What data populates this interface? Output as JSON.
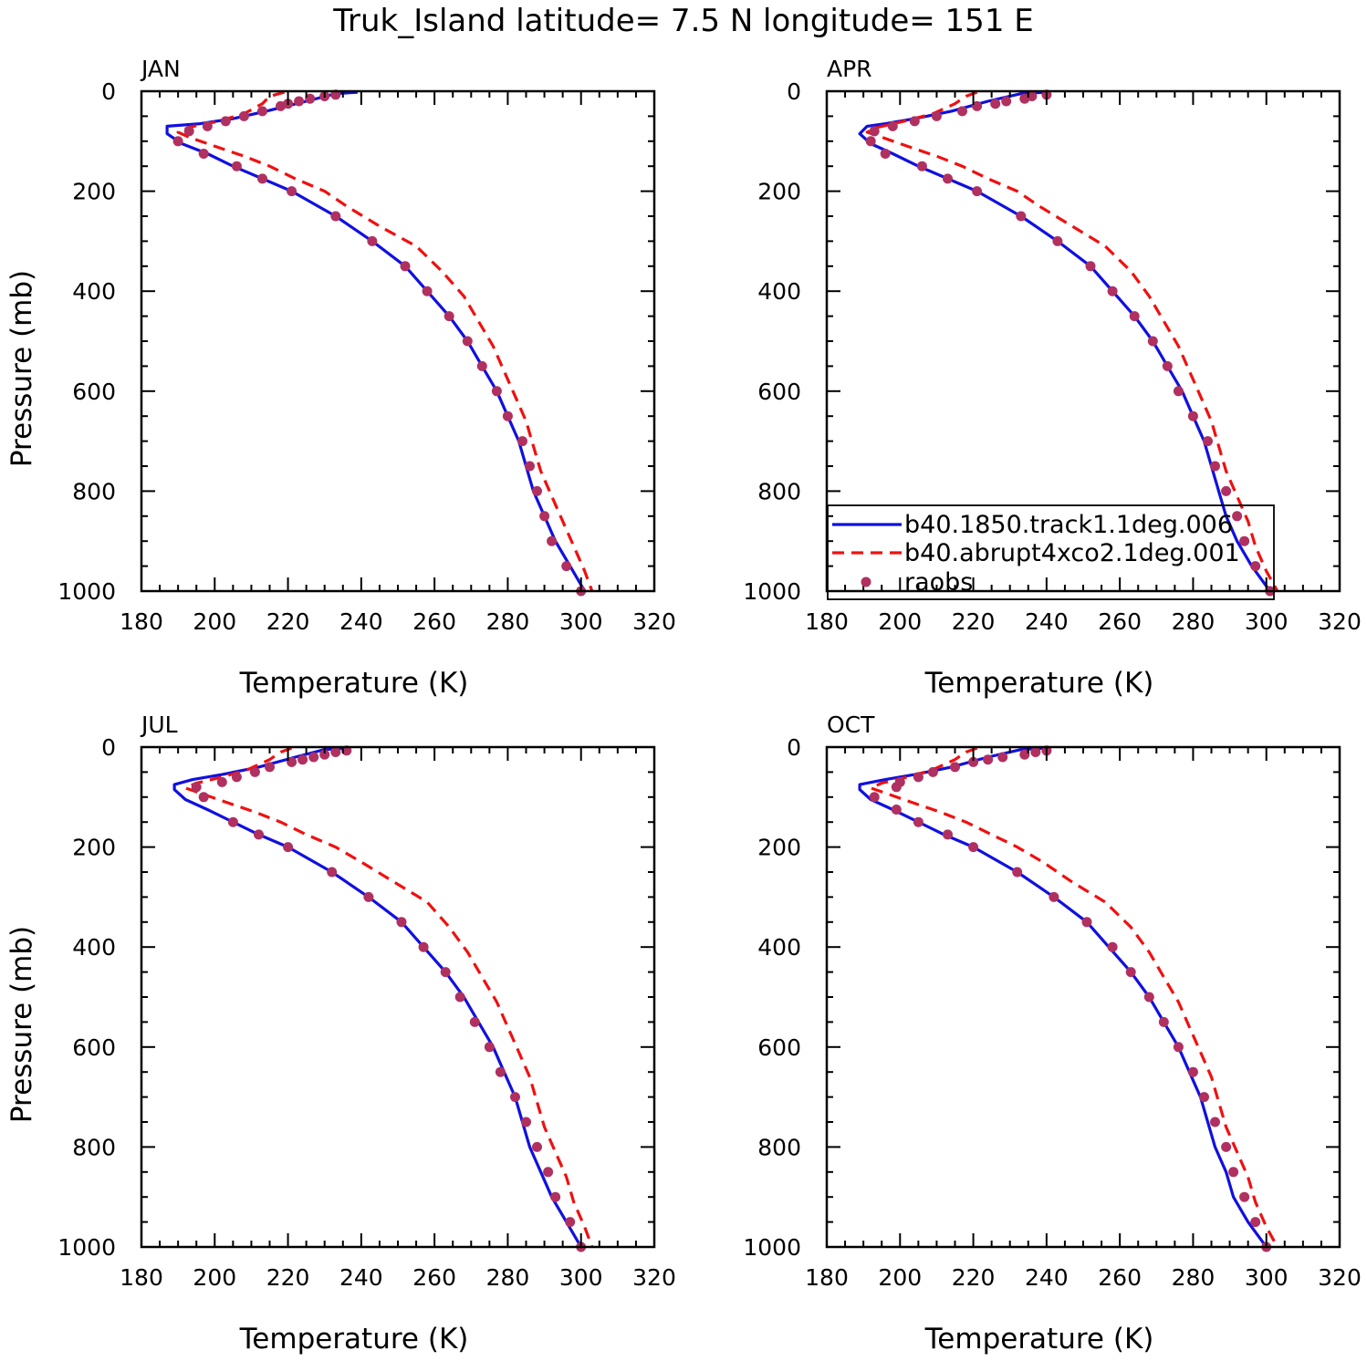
{
  "title": "Truk_Island  latitude= 7.5 N longitude= 151 E",
  "colors": {
    "b40.1850.track1.1deg.006": "#1010e0",
    "b40.abrupt4xco2.1deg.001": "#f01010",
    "raobs": "#b03060"
  },
  "legend": {
    "placement": "bottom-right of APR panel",
    "entries": [
      {
        "label": "b40.1850.track1.1deg.006",
        "style": "solid",
        "color": "#1010e0"
      },
      {
        "label": "b40.abrupt4xco2.1deg.001",
        "style": "dashed",
        "color": "#f01010"
      },
      {
        "label": "raobs",
        "style": "dot",
        "color": "#b03060"
      }
    ]
  },
  "chart_data": [
    {
      "type": "line",
      "title": "JAN",
      "xlabel": "Temperature (K)",
      "ylabel": "Pressure (mb)",
      "xlim": [
        180,
        320
      ],
      "ylim": [
        1000,
        0
      ],
      "xticks": [
        "180",
        "200",
        "220",
        "240",
        "260",
        "280",
        "300",
        "320"
      ],
      "yticks": [
        "0",
        "200",
        "400",
        "600",
        "800",
        "1000"
      ],
      "grid": false,
      "series": [
        {
          "name": "b40.1850.track1.1deg.006",
          "style": "solid",
          "x": [
            239,
            233,
            225,
            214,
            205,
            196,
            187,
            187,
            191,
            198,
            205,
            213,
            221,
            233,
            243,
            252,
            258,
            264,
            269,
            273,
            277,
            280,
            283,
            285,
            287,
            290,
            293,
            297,
            301
          ],
          "y": [
            2,
            5,
            20,
            40,
            55,
            65,
            70,
            85,
            105,
            125,
            150,
            175,
            200,
            250,
            300,
            350,
            400,
            450,
            500,
            550,
            600,
            650,
            700,
            750,
            800,
            850,
            900,
            950,
            1000
          ]
        },
        {
          "name": "b40.abrupt4xco2.1deg.001",
          "style": "dashed",
          "x": [
            219,
            215,
            213,
            208,
            201,
            193,
            190,
            193,
            200,
            208,
            215,
            222,
            230,
            236,
            245,
            255,
            262,
            268,
            272,
            276,
            279,
            282,
            285,
            287,
            289,
            292,
            295,
            298,
            301,
            303
          ],
          "y": [
            2,
            10,
            25,
            45,
            60,
            72,
            82,
            92,
            110,
            130,
            150,
            175,
            200,
            230,
            270,
            310,
            360,
            410,
            460,
            510,
            560,
            610,
            660,
            710,
            760,
            810,
            860,
            910,
            960,
            1000
          ]
        },
        {
          "name": "raobs",
          "style": "dot",
          "x": [
            233,
            230,
            226,
            223,
            220,
            218,
            213,
            208,
            203,
            198,
            193,
            190,
            197,
            206,
            213,
            221,
            233,
            243,
            252,
            258,
            264,
            269,
            273,
            277,
            280,
            284,
            286,
            288,
            290,
            292,
            296,
            300
          ],
          "y": [
            7,
            10,
            15,
            20,
            25,
            30,
            40,
            50,
            60,
            70,
            80,
            100,
            125,
            150,
            175,
            200,
            250,
            300,
            350,
            400,
            450,
            500,
            550,
            600,
            650,
            700,
            750,
            800,
            850,
            900,
            950,
            1000
          ]
        }
      ]
    },
    {
      "type": "line",
      "title": "APR",
      "xlabel": "Temperature (K)",
      "ylabel": "",
      "xlim": [
        180,
        320
      ],
      "ylim": [
        1000,
        0
      ],
      "xticks": [
        "180",
        "200",
        "220",
        "240",
        "260",
        "280",
        "300",
        "320"
      ],
      "yticks": [
        "0",
        "200",
        "400",
        "600",
        "800",
        "1000"
      ],
      "grid": false,
      "series": [
        {
          "name": "b40.1850.track1.1deg.006",
          "style": "solid",
          "x": [
            240,
            233,
            224,
            214,
            204,
            196,
            191,
            189,
            192,
            198,
            205,
            213,
            221,
            233,
            243,
            252,
            258,
            264,
            269,
            273,
            277,
            280,
            283,
            285,
            287,
            289,
            292,
            296,
            301
          ],
          "y": [
            2,
            5,
            20,
            40,
            55,
            65,
            70,
            85,
            105,
            125,
            150,
            175,
            200,
            250,
            300,
            350,
            400,
            450,
            500,
            550,
            600,
            650,
            700,
            750,
            800,
            850,
            900,
            950,
            1000
          ]
        },
        {
          "name": "b40.abrupt4xco2.1deg.001",
          "style": "dashed",
          "x": [
            221,
            218,
            215,
            209,
            201,
            194,
            191,
            195,
            202,
            210,
            217,
            224,
            232,
            238,
            247,
            256,
            263,
            268,
            272,
            276,
            279,
            282,
            285,
            287,
            289,
            292,
            295,
            297,
            300,
            303
          ],
          "y": [
            2,
            10,
            25,
            45,
            60,
            72,
            82,
            92,
            110,
            130,
            150,
            175,
            200,
            230,
            270,
            310,
            360,
            410,
            460,
            510,
            560,
            610,
            660,
            710,
            760,
            810,
            860,
            910,
            960,
            1000
          ]
        },
        {
          "name": "raobs",
          "style": "dot",
          "x": [
            240,
            236,
            234,
            229,
            226,
            221,
            217,
            210,
            204,
            198,
            193,
            192,
            196,
            206,
            213,
            221,
            233,
            243,
            252,
            258,
            264,
            269,
            273,
            276,
            280,
            284,
            286,
            289,
            292,
            294,
            297,
            301
          ],
          "y": [
            7,
            10,
            15,
            20,
            25,
            30,
            40,
            50,
            60,
            70,
            80,
            100,
            125,
            150,
            175,
            200,
            250,
            300,
            350,
            400,
            450,
            500,
            550,
            600,
            650,
            700,
            750,
            800,
            850,
            900,
            950,
            1000
          ]
        }
      ]
    },
    {
      "type": "line",
      "title": "JUL",
      "xlabel": "Temperature (K)",
      "ylabel": "Pressure (mb)",
      "xlim": [
        180,
        320
      ],
      "ylim": [
        1000,
        0
      ],
      "xticks": [
        "180",
        "200",
        "220",
        "240",
        "260",
        "280",
        "300",
        "320"
      ],
      "yticks": [
        "0",
        "200",
        "400",
        "600",
        "800",
        "1000"
      ],
      "grid": false,
      "series": [
        {
          "name": "b40.1850.track1.1deg.006",
          "style": "solid",
          "x": [
            237,
            230,
            222,
            212,
            202,
            194,
            189,
            189,
            192,
            198,
            205,
            212,
            220,
            232,
            242,
            251,
            257,
            263,
            268,
            272,
            276,
            279,
            282,
            284,
            286,
            289,
            292,
            296,
            300
          ],
          "y": [
            2,
            5,
            20,
            40,
            55,
            65,
            75,
            85,
            105,
            125,
            150,
            175,
            200,
            250,
            300,
            350,
            400,
            450,
            500,
            550,
            600,
            650,
            700,
            750,
            800,
            850,
            900,
            950,
            1000
          ]
        },
        {
          "name": "b40.abrupt4xco2.1deg.001",
          "style": "dashed",
          "x": [
            221,
            218,
            215,
            209,
            202,
            195,
            192,
            196,
            203,
            211,
            218,
            225,
            233,
            240,
            249,
            258,
            264,
            269,
            273,
            277,
            280,
            283,
            286,
            288,
            290,
            293,
            296,
            298,
            301,
            303
          ],
          "y": [
            2,
            10,
            25,
            45,
            60,
            72,
            82,
            92,
            110,
            130,
            150,
            175,
            200,
            230,
            270,
            310,
            360,
            410,
            460,
            510,
            560,
            610,
            660,
            710,
            760,
            810,
            860,
            910,
            960,
            1000
          ]
        },
        {
          "name": "raobs",
          "style": "dot",
          "x": [
            236,
            233,
            230,
            227,
            224,
            221,
            215,
            211,
            206,
            202,
            195,
            197,
            205,
            212,
            220,
            232,
            242,
            251,
            257,
            263,
            267,
            271,
            275,
            278,
            282,
            285,
            288,
            291,
            293,
            297,
            300
          ],
          "y": [
            7,
            10,
            15,
            20,
            25,
            30,
            40,
            50,
            60,
            70,
            80,
            100,
            150,
            175,
            200,
            250,
            300,
            350,
            400,
            450,
            500,
            550,
            600,
            650,
            700,
            750,
            800,
            850,
            900,
            950,
            1000
          ]
        }
      ]
    },
    {
      "type": "line",
      "title": "OCT",
      "xlabel": "Temperature (K)",
      "ylabel": "",
      "xlim": [
        180,
        320
      ],
      "ylim": [
        1000,
        0
      ],
      "xticks": [
        "180",
        "200",
        "220",
        "240",
        "260",
        "280",
        "300",
        "320"
      ],
      "yticks": [
        "0",
        "200",
        "400",
        "600",
        "800",
        "1000"
      ],
      "grid": false,
      "series": [
        {
          "name": "b40.1850.track1.1deg.006",
          "style": "solid",
          "x": [
            240,
            233,
            224,
            214,
            204,
            196,
            189,
            189,
            192,
            198,
            205,
            212,
            220,
            232,
            242,
            251,
            257,
            263,
            268,
            272,
            276,
            279,
            282,
            284,
            286,
            289,
            291,
            295,
            300
          ],
          "y": [
            2,
            5,
            20,
            40,
            55,
            65,
            75,
            85,
            105,
            125,
            150,
            175,
            200,
            250,
            300,
            350,
            400,
            450,
            500,
            550,
            600,
            650,
            700,
            750,
            800,
            850,
            900,
            950,
            1000
          ]
        },
        {
          "name": "b40.abrupt4xco2.1deg.001",
          "style": "dashed",
          "x": [
            221,
            218,
            215,
            209,
            202,
            195,
            192,
            196,
            203,
            211,
            218,
            225,
            232,
            239,
            247,
            256,
            263,
            268,
            272,
            276,
            279,
            282,
            285,
            287,
            289,
            292,
            295,
            297,
            300,
            303
          ],
          "y": [
            2,
            10,
            25,
            45,
            60,
            72,
            82,
            92,
            110,
            130,
            150,
            175,
            200,
            230,
            270,
            310,
            360,
            410,
            460,
            510,
            560,
            610,
            660,
            710,
            760,
            810,
            860,
            910,
            960,
            1000
          ]
        },
        {
          "name": "raobs",
          "style": "dot",
          "x": [
            240,
            237,
            234,
            228,
            224,
            220,
            215,
            209,
            205,
            200,
            199,
            193,
            199,
            205,
            213,
            220,
            232,
            242,
            251,
            258,
            263,
            268,
            272,
            276,
            280,
            283,
            286,
            289,
            291,
            294,
            297,
            300
          ],
          "y": [
            7,
            10,
            15,
            20,
            25,
            30,
            40,
            50,
            60,
            70,
            80,
            100,
            125,
            150,
            175,
            200,
            250,
            300,
            350,
            400,
            450,
            500,
            550,
            600,
            650,
            700,
            750,
            800,
            850,
            900,
            950,
            1000
          ]
        }
      ]
    }
  ]
}
